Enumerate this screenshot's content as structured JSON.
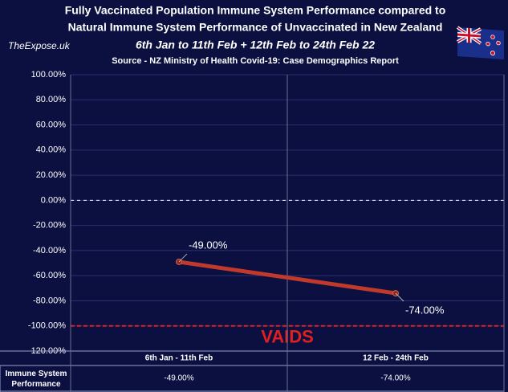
{
  "chart_data": {
    "type": "line",
    "title": [
      "Fully Vaccinated Population Immune System Performance compared to",
      "Natural Immune System Performance of Unvaccinated in New Zealand"
    ],
    "subtitle": "6th Jan to 11th Feb + 12th Feb to 24th Feb 22",
    "source": "Source - NZ Ministry of Health Covid-19: Case Demographics Report",
    "watermark": "TheExpose.uk",
    "categories": [
      "6th Jan - 11th Feb",
      "12 Feb - 24th Feb"
    ],
    "series": [
      {
        "name": "Immune System Performance",
        "color": "#c0392b",
        "values": [
          -49,
          -74
        ],
        "value_labels": [
          "-49.00%",
          "-74.00%"
        ]
      }
    ],
    "ylim": [
      -120,
      100
    ],
    "yticks": [
      {
        "value": -120,
        "label": "-120.00%"
      },
      {
        "value": -100,
        "label": "-100.00%"
      },
      {
        "value": -80,
        "label": "-80.00%"
      },
      {
        "value": -60,
        "label": "-60.00%"
      },
      {
        "value": -40,
        "label": "-40.00%"
      },
      {
        "value": -20,
        "label": "-20.00%"
      },
      {
        "value": 0,
        "label": "0.00%"
      },
      {
        "value": 20,
        "label": "20.00%"
      },
      {
        "value": 40,
        "label": "40.00%"
      },
      {
        "value": 60,
        "label": "60.00%"
      },
      {
        "value": 80,
        "label": "80.00%"
      },
      {
        "value": 100,
        "label": "100.00%"
      }
    ],
    "grid": true,
    "reference_lines": [
      {
        "value": 0,
        "color": "#ffffff"
      },
      {
        "value": -100,
        "color": "#e02020",
        "label": "VAIDS"
      }
    ]
  }
}
